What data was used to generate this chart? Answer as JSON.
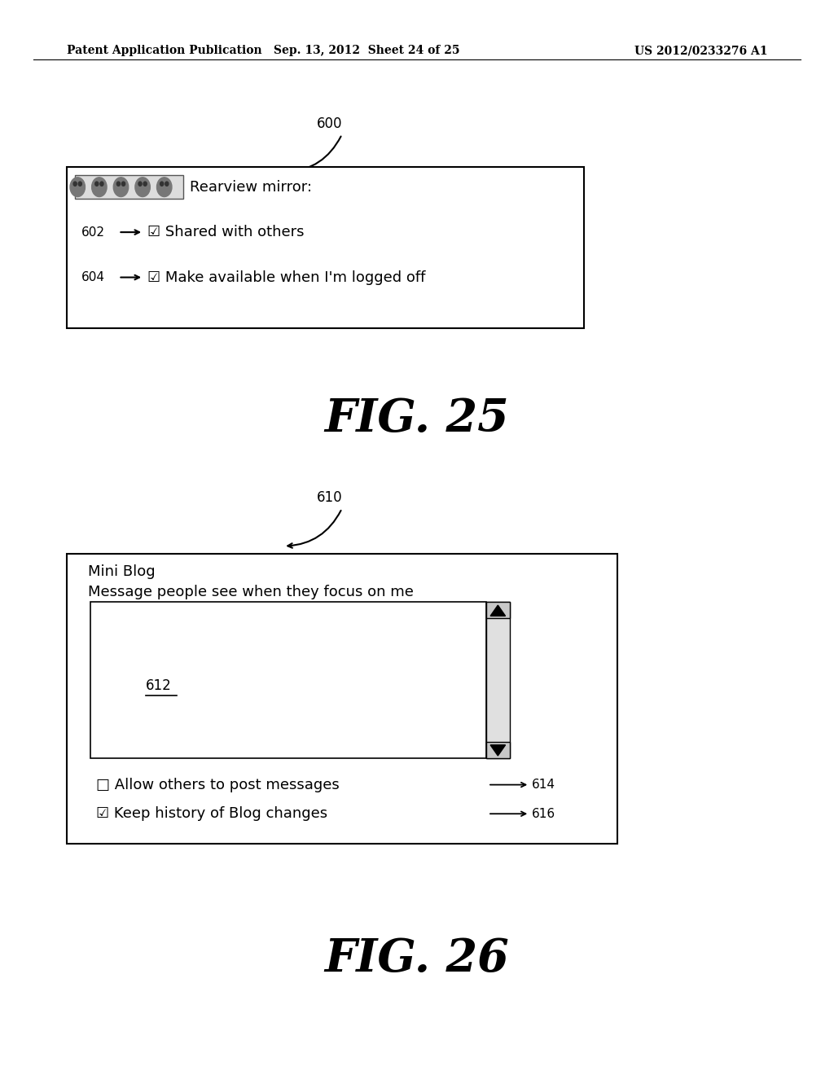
{
  "bg_color": "#ffffff",
  "header_left": "Patent Application Publication",
  "header_mid": "Sep. 13, 2012  Sheet 24 of 25",
  "header_right": "US 2012/0233276 A1",
  "fig25_label": "FIG. 25",
  "fig26_label": "FIG. 26",
  "box1_ref": "600",
  "box1_title": "Rearview mirror:",
  "box1_line1_ref": "602",
  "box1_line1_text": "☑ Shared with others",
  "box1_line2_ref": "604",
  "box1_line2_text": "☑ Make available when I'm logged off",
  "box2_ref": "610",
  "box2_title1": "Mini Blog",
  "box2_title2": "Message people see when they focus on me",
  "box2_text_ref": "612",
  "box2_check1_ref": "614",
  "box2_check1_text": "□ Allow others to post messages",
  "box2_check2_ref": "616",
  "box2_check2_text": "☑ Keep history of Blog changes"
}
